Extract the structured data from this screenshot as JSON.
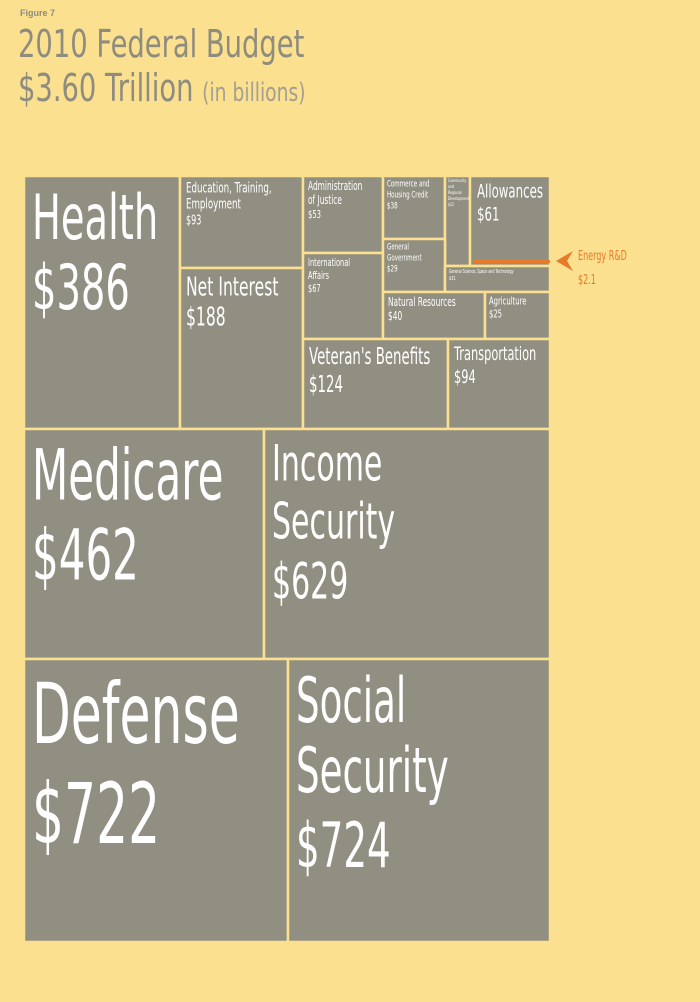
{
  "figure_label": "Figure 7",
  "title_line1": "2010 Federal Budget",
  "title_line2": "$3.60 Trillion",
  "title_unit": "(in billions)",
  "colors": {
    "background": "#fbe08f",
    "tile": "#918f82",
    "title": "#8e8b7f",
    "highlight": "#e87a2a"
  },
  "chart_data": {
    "type": "treemap",
    "title": "2010 Federal Budget $3.60 Trillion",
    "unit": "(in billions)",
    "items": [
      {
        "id": "health",
        "label": "Health",
        "value_label": "$386",
        "value": 386
      },
      {
        "id": "education",
        "label": "Education, Training, Employment",
        "value_label": "$93",
        "value": 93
      },
      {
        "id": "net-interest",
        "label": "Net Interest",
        "value_label": "$188",
        "value": 188
      },
      {
        "id": "justice",
        "label": "Administration of Justice",
        "value_label": "$53",
        "value": 53
      },
      {
        "id": "international",
        "label": "International Affairs",
        "value_label": "$67",
        "value": 67
      },
      {
        "id": "commerce",
        "label": "Commerce and Housing Credit",
        "value_label": "$38",
        "value": 38
      },
      {
        "id": "community",
        "label": "Community and Regional Development",
        "value_label": "$12",
        "value": 12
      },
      {
        "id": "allowances",
        "label": "Allowances",
        "value_label": "$61",
        "value": 61
      },
      {
        "id": "general-gov",
        "label": "General Government",
        "value_label": "$29",
        "value": 29
      },
      {
        "id": "science",
        "label": "General Science, Space and Technology",
        "value_label": "$31",
        "value": 31
      },
      {
        "id": "natural-resources",
        "label": "Natural Resources",
        "value_label": "$40",
        "value": 40
      },
      {
        "id": "agriculture",
        "label": "Agriculture",
        "value_label": "$25",
        "value": 25
      },
      {
        "id": "veterans",
        "label": "Veteran's Benefits",
        "value_label": "$124",
        "value": 124
      },
      {
        "id": "transportation",
        "label": "Transportation",
        "value_label": "$94",
        "value": 94
      },
      {
        "id": "medicare",
        "label": "Medicare",
        "value_label": "$462",
        "value": 462
      },
      {
        "id": "income-security",
        "label": "Income Security",
        "value_label": "$629",
        "value": 629
      },
      {
        "id": "defense",
        "label": "Defense",
        "value_label": "$722",
        "value": 722
      },
      {
        "id": "social-security",
        "label": "Social Security",
        "value_label": "$724",
        "value": 724
      }
    ],
    "highlight": {
      "label": "Energy R&D",
      "value_label": "$2.1",
      "value": 2.1
    }
  }
}
